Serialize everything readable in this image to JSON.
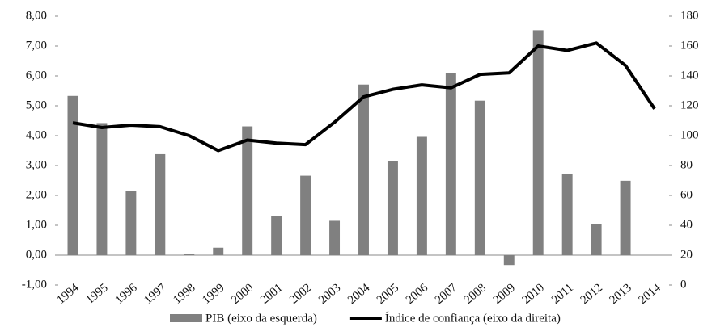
{
  "chart_data": {
    "type": "bar-line",
    "categories": [
      "1994",
      "1995",
      "1996",
      "1997",
      "1998",
      "1999",
      "2000",
      "2001",
      "2002",
      "2003",
      "2004",
      "2005",
      "2006",
      "2007",
      "2008",
      "2009",
      "2010",
      "2011",
      "2012",
      "2013",
      "2014"
    ],
    "series": [
      {
        "name": "PIB (eixo da esquerda)",
        "type": "bar",
        "color": "#808080",
        "values": [
          5.33,
          4.42,
          2.15,
          3.38,
          0.04,
          0.25,
          4.31,
          1.31,
          2.66,
          1.15,
          5.71,
          3.16,
          3.96,
          6.09,
          5.17,
          -0.33,
          7.53,
          2.73,
          1.03,
          2.49,
          0
        ]
      },
      {
        "name": "Índice de confiança (eixo da direita)",
        "type": "line",
        "color": "#000000",
        "axis": "y2",
        "values": [
          108.6,
          105.4,
          107,
          106,
          100,
          90,
          97,
          95,
          94,
          109,
          126,
          131,
          134,
          132,
          141,
          142,
          160,
          157,
          162,
          147,
          118
        ]
      }
    ],
    "ylim": [
      -1,
      8
    ],
    "yticks": [
      {
        "value": -1,
        "label": "-1,00"
      },
      {
        "value": 0,
        "label": "0,00"
      },
      {
        "value": 1,
        "label": "1,00"
      },
      {
        "value": 2,
        "label": "2,00"
      },
      {
        "value": 3,
        "label": "3,00"
      },
      {
        "value": 4,
        "label": "4,00"
      },
      {
        "value": 5,
        "label": "5,00"
      },
      {
        "value": 6,
        "label": "6,00"
      },
      {
        "value": 7,
        "label": "7,00"
      },
      {
        "value": 8,
        "label": "8,00"
      }
    ],
    "y2lim": [
      0,
      180
    ],
    "y2ticks": [
      0,
      20,
      40,
      60,
      80,
      100,
      120,
      140,
      160,
      180
    ],
    "grid": false
  }
}
